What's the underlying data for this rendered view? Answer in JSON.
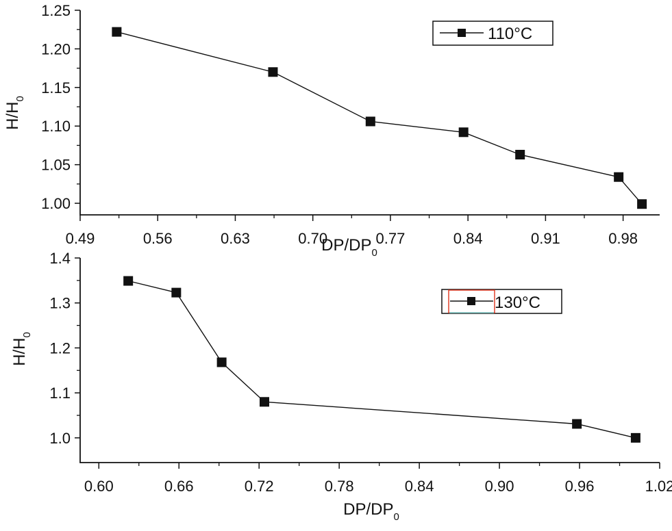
{
  "chart_data": [
    {
      "type": "line",
      "x_ticks": [
        "0.49",
        "0.56",
        "0.63",
        "0.70",
        "0.77",
        "0.84",
        "0.91",
        "0.98"
      ],
      "y_ticks": [
        "1.00",
        "1.05",
        "1.10",
        "1.15",
        "1.20",
        "1.25"
      ],
      "xlim": [
        0.49,
        1.013
      ],
      "ylim": [
        0.985,
        1.25
      ],
      "xlabel": {
        "main": "DP/DP",
        "sub": "0"
      },
      "ylabel": {
        "main": "H/H",
        "sub": "0"
      },
      "series": [
        {
          "name": "110°C",
          "x": [
            0.523,
            0.664,
            0.752,
            0.836,
            0.887,
            0.976,
            0.997
          ],
          "y": [
            1.222,
            1.17,
            1.106,
            1.092,
            1.063,
            1.034,
            0.999
          ]
        }
      ],
      "legend": "top-right",
      "grid": false
    },
    {
      "type": "line",
      "x_ticks": [
        "0.60",
        "0.66",
        "0.72",
        "0.78",
        "0.84",
        "0.90",
        "0.96",
        "1.02"
      ],
      "y_ticks": [
        "1.0",
        "1.1",
        "1.2",
        "1.3",
        "1.4"
      ],
      "xlim": [
        0.586,
        1.02
      ],
      "ylim": [
        0.945,
        1.4
      ],
      "xlabel": {
        "main": "DP/DP",
        "sub": "0"
      },
      "ylabel": {
        "main": "H/H",
        "sub": "0"
      },
      "series": [
        {
          "name": "130°C",
          "x": [
            0.622,
            0.658,
            0.692,
            0.724,
            0.958,
            1.002
          ],
          "y": [
            1.349,
            1.323,
            1.168,
            1.08,
            1.031,
            1.0
          ]
        }
      ],
      "legend": "top-right",
      "grid": false
    }
  ]
}
